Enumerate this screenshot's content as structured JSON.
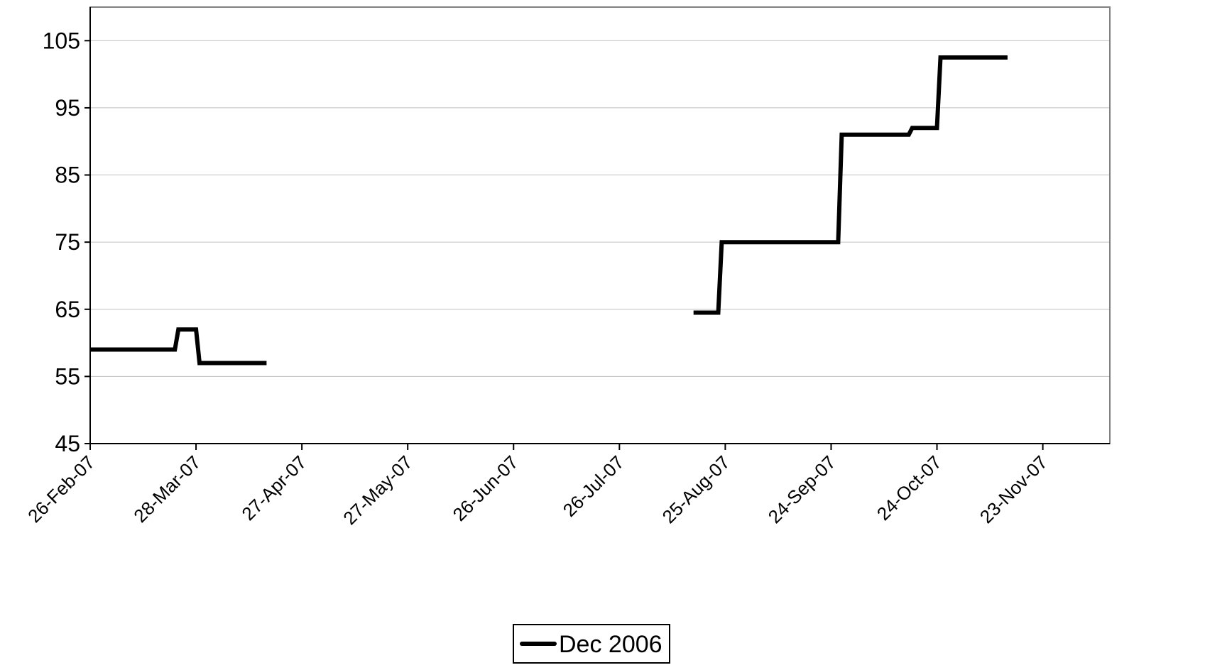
{
  "chart_data": {
    "type": "line",
    "title": "",
    "xlabel": "",
    "ylabel": "",
    "x_axis_type": "date",
    "xlim": [
      "2007-02-26",
      "2007-12-12"
    ],
    "ylim": [
      45,
      110
    ],
    "y_ticks": [
      45,
      55,
      65,
      75,
      85,
      95,
      105
    ],
    "x_ticks": [
      {
        "date": "2007-02-26",
        "label": "26-Feb-07"
      },
      {
        "date": "2007-03-28",
        "label": "28-Mar-07"
      },
      {
        "date": "2007-04-27",
        "label": "27-Apr-07"
      },
      {
        "date": "2007-05-27",
        "label": "27-May-07"
      },
      {
        "date": "2007-06-26",
        "label": "26-Jun-07"
      },
      {
        "date": "2007-07-26",
        "label": "26-Jul-07"
      },
      {
        "date": "2007-08-25",
        "label": "25-Aug-07"
      },
      {
        "date": "2007-09-24",
        "label": "24-Sep-07"
      },
      {
        "date": "2007-10-24",
        "label": "24-Oct-07"
      },
      {
        "date": "2007-11-23",
        "label": "23-Nov-07"
      }
    ],
    "grid": {
      "horizontal": true,
      "vertical": false
    },
    "legend_position": "bottom-center",
    "series": [
      {
        "name": "Dec 2006",
        "color": "#000000",
        "segments": [
          [
            {
              "x": "2007-02-26",
              "y": 59
            },
            {
              "x": "2007-03-22",
              "y": 59
            },
            {
              "x": "2007-03-23",
              "y": 62
            },
            {
              "x": "2007-03-28",
              "y": 62
            },
            {
              "x": "2007-03-29",
              "y": 57
            },
            {
              "x": "2007-04-17",
              "y": 57
            }
          ],
          [
            {
              "x": "2007-08-16",
              "y": 64.5
            },
            {
              "x": "2007-08-23",
              "y": 64.5
            },
            {
              "x": "2007-08-24",
              "y": 75
            },
            {
              "x": "2007-09-26",
              "y": 75
            },
            {
              "x": "2007-09-27",
              "y": 91
            },
            {
              "x": "2007-10-16",
              "y": 91
            },
            {
              "x": "2007-10-17",
              "y": 92
            },
            {
              "x": "2007-10-24",
              "y": 92
            },
            {
              "x": "2007-10-25",
              "y": 102.5
            },
            {
              "x": "2007-11-13",
              "y": 102.5
            }
          ]
        ]
      }
    ]
  }
}
